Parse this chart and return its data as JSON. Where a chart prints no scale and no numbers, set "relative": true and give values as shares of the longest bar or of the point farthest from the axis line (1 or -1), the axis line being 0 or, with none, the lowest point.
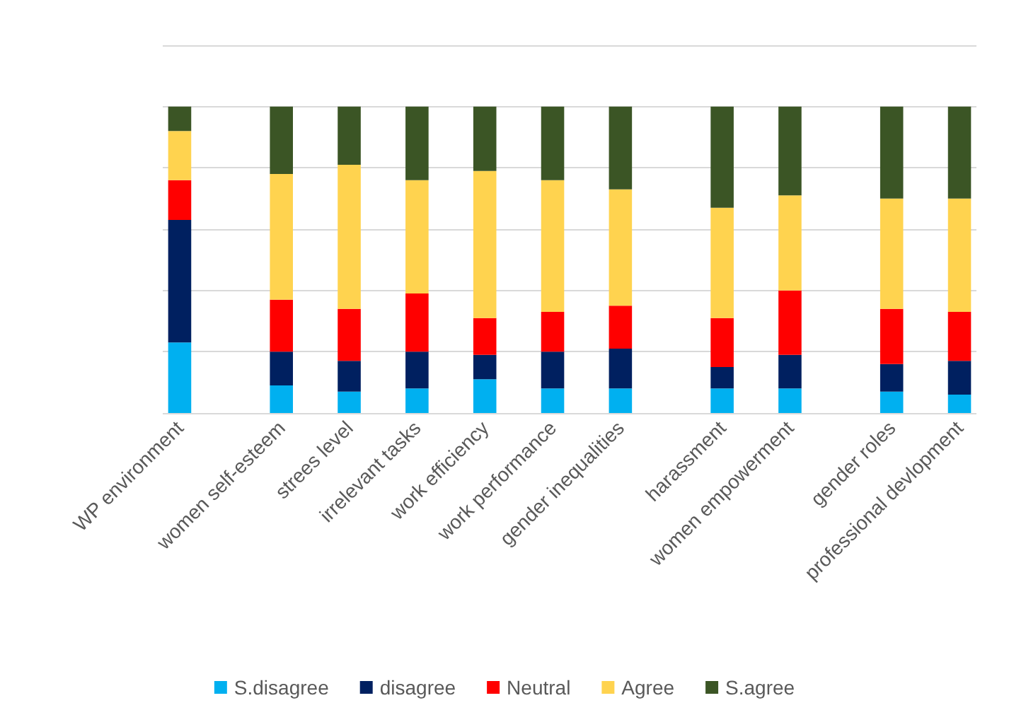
{
  "chart_data": {
    "type": "bar",
    "stacked": true,
    "relative": true,
    "grid": "y",
    "legend": "bottom",
    "categories": [
      "WP environment",
      null,
      null,
      "women self-esteem",
      null,
      "strees level",
      null,
      "irrelevant tasks",
      null,
      "work efficiency",
      null,
      "work performance",
      null,
      "gender inequalities",
      null,
      null,
      "harassment",
      null,
      "women empowerment",
      null,
      null,
      "gender roles",
      null,
      "professional devlopment"
    ],
    "series": [
      {
        "name": "S.disagree",
        "color": "#00b0f0",
        "values": [
          0.23,
          null,
          null,
          0.09,
          null,
          0.07,
          null,
          0.08,
          null,
          0.11,
          null,
          0.08,
          null,
          0.08,
          null,
          null,
          0.08,
          null,
          0.08,
          null,
          null,
          0.07,
          null,
          0.06
        ]
      },
      {
        "name": "disagree",
        "color": "#002060",
        "values": [
          0.4,
          null,
          null,
          0.11,
          null,
          0.1,
          null,
          0.12,
          null,
          0.08,
          null,
          0.12,
          null,
          0.13,
          null,
          null,
          0.07,
          null,
          0.11,
          null,
          null,
          0.09,
          null,
          0.11
        ]
      },
      {
        "name": "Neutral",
        "color": "#ff0000",
        "values": [
          0.13,
          null,
          null,
          0.17,
          null,
          0.17,
          null,
          0.19,
          null,
          0.12,
          null,
          0.13,
          null,
          0.14,
          null,
          null,
          0.16,
          null,
          0.21,
          null,
          null,
          0.18,
          null,
          0.16
        ]
      },
      {
        "name": "Agree",
        "color": "#ffd34f",
        "values": [
          0.16,
          null,
          null,
          0.41,
          null,
          0.47,
          null,
          0.37,
          null,
          0.48,
          null,
          0.43,
          null,
          0.38,
          null,
          null,
          0.36,
          null,
          0.31,
          null,
          null,
          0.36,
          null,
          0.37
        ]
      },
      {
        "name": "S.agree",
        "color": "#3b5525",
        "values": [
          0.08,
          null,
          null,
          0.22,
          null,
          0.19,
          null,
          0.24,
          null,
          0.21,
          null,
          0.24,
          null,
          0.27,
          null,
          null,
          0.33,
          null,
          0.29,
          null,
          null,
          0.3,
          null,
          0.3
        ]
      }
    ]
  }
}
